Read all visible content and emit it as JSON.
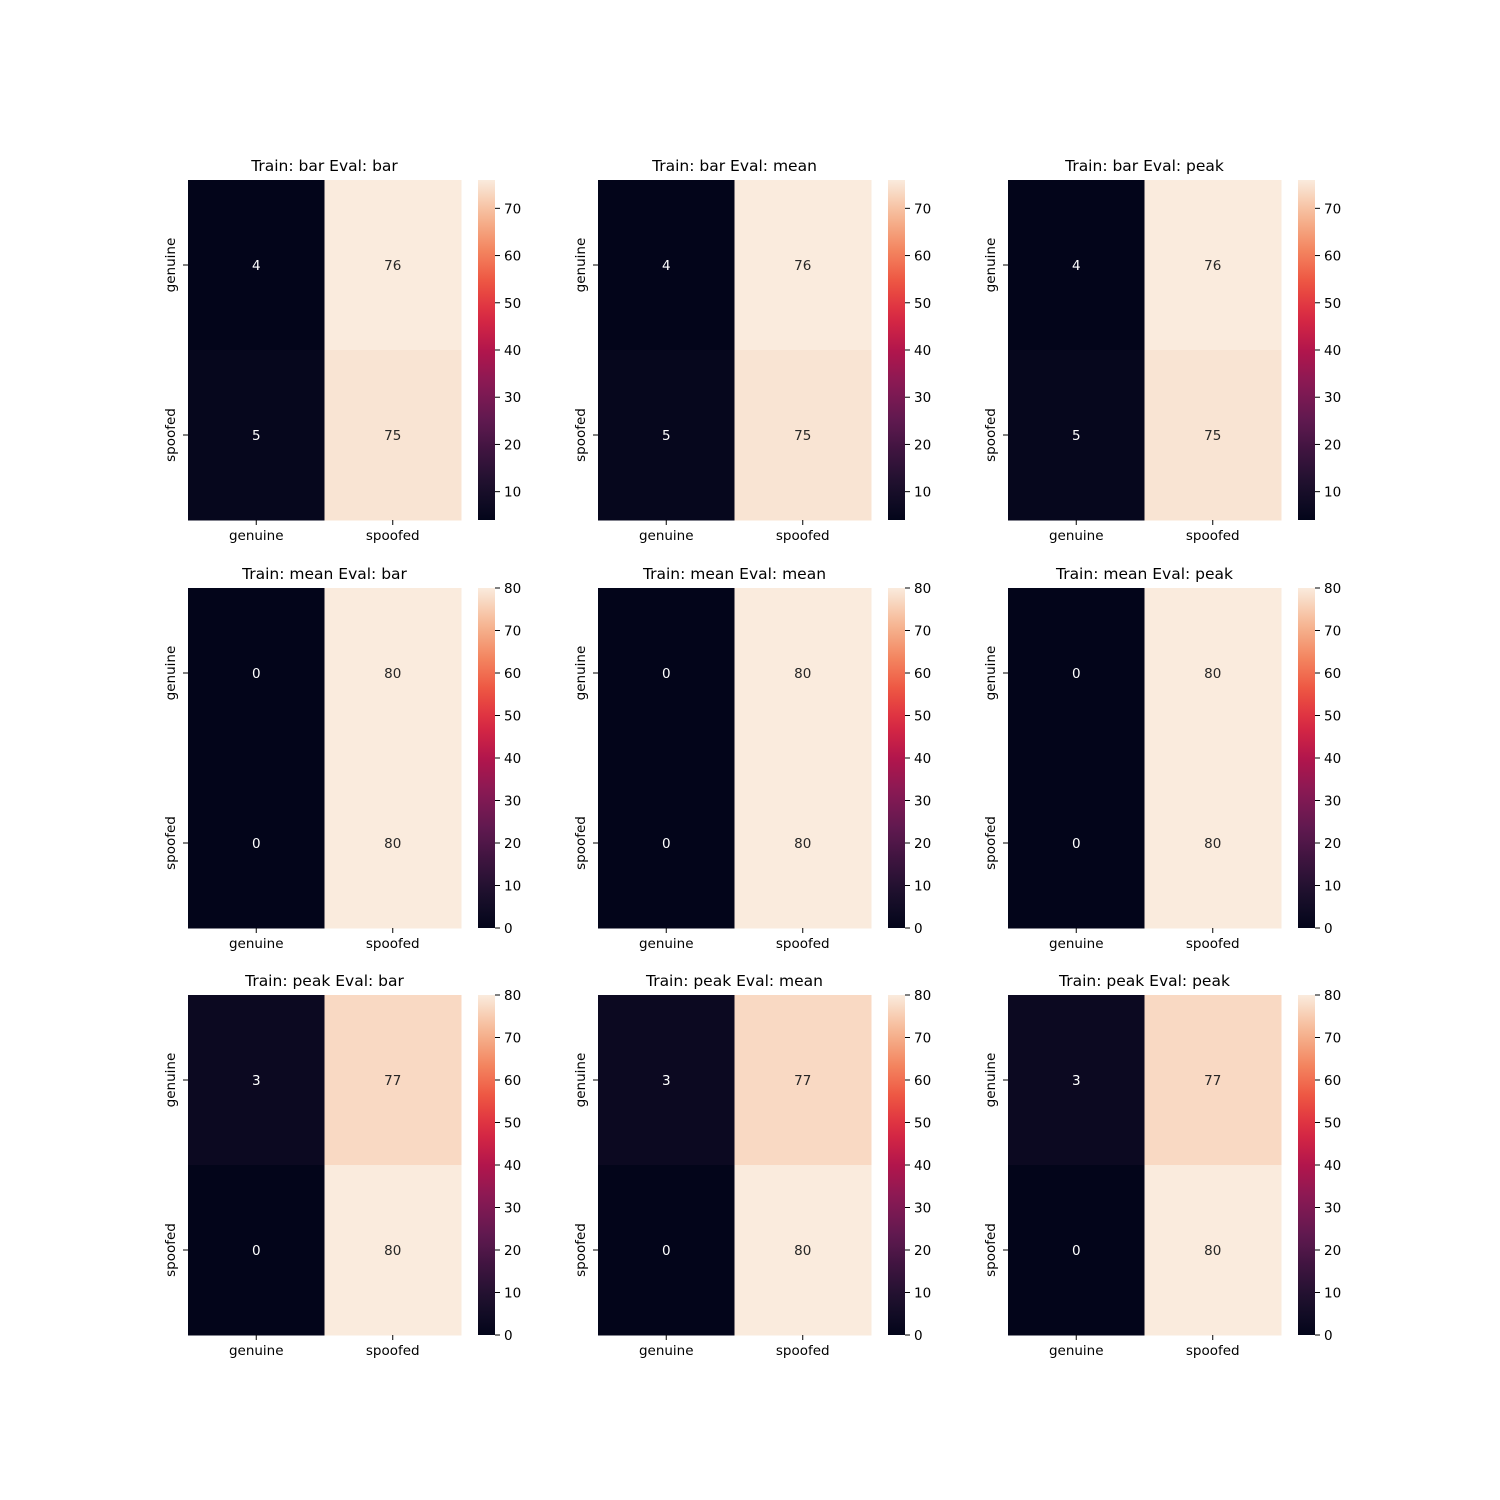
{
  "chart_data": [
    {
      "type": "heatmap",
      "title": "Train: bar Eval: bar",
      "x_categories": [
        "genuine",
        "spoofed"
      ],
      "y_categories": [
        "genuine",
        "spoofed"
      ],
      "values": [
        [
          4,
          76
        ],
        [
          5,
          75
        ]
      ],
      "colorbar": {
        "min": 4,
        "max": 76,
        "ticks": [
          10,
          20,
          30,
          40,
          50,
          60,
          70
        ]
      }
    },
    {
      "type": "heatmap",
      "title": "Train: bar Eval: mean",
      "x_categories": [
        "genuine",
        "spoofed"
      ],
      "y_categories": [
        "genuine",
        "spoofed"
      ],
      "values": [
        [
          4,
          76
        ],
        [
          5,
          75
        ]
      ],
      "colorbar": {
        "min": 4,
        "max": 76,
        "ticks": [
          10,
          20,
          30,
          40,
          50,
          60,
          70
        ]
      }
    },
    {
      "type": "heatmap",
      "title": "Train: bar Eval: peak",
      "x_categories": [
        "genuine",
        "spoofed"
      ],
      "y_categories": [
        "genuine",
        "spoofed"
      ],
      "values": [
        [
          4,
          76
        ],
        [
          5,
          75
        ]
      ],
      "colorbar": {
        "min": 4,
        "max": 76,
        "ticks": [
          10,
          20,
          30,
          40,
          50,
          60,
          70
        ]
      }
    },
    {
      "type": "heatmap",
      "title": "Train: mean Eval: bar",
      "x_categories": [
        "genuine",
        "spoofed"
      ],
      "y_categories": [
        "genuine",
        "spoofed"
      ],
      "values": [
        [
          0,
          80
        ],
        [
          0,
          80
        ]
      ],
      "colorbar": {
        "min": 0,
        "max": 80,
        "ticks": [
          0,
          10,
          20,
          30,
          40,
          50,
          60,
          70,
          80
        ]
      }
    },
    {
      "type": "heatmap",
      "title": "Train: mean Eval: mean",
      "x_categories": [
        "genuine",
        "spoofed"
      ],
      "y_categories": [
        "genuine",
        "spoofed"
      ],
      "values": [
        [
          0,
          80
        ],
        [
          0,
          80
        ]
      ],
      "colorbar": {
        "min": 0,
        "max": 80,
        "ticks": [
          0,
          10,
          20,
          30,
          40,
          50,
          60,
          70,
          80
        ]
      }
    },
    {
      "type": "heatmap",
      "title": "Train: mean Eval: peak",
      "x_categories": [
        "genuine",
        "spoofed"
      ],
      "y_categories": [
        "genuine",
        "spoofed"
      ],
      "values": [
        [
          0,
          80
        ],
        [
          0,
          80
        ]
      ],
      "colorbar": {
        "min": 0,
        "max": 80,
        "ticks": [
          0,
          10,
          20,
          30,
          40,
          50,
          60,
          70,
          80
        ]
      }
    },
    {
      "type": "heatmap",
      "title": "Train: peak Eval: bar",
      "x_categories": [
        "genuine",
        "spoofed"
      ],
      "y_categories": [
        "genuine",
        "spoofed"
      ],
      "values": [
        [
          3,
          77
        ],
        [
          0,
          80
        ]
      ],
      "colorbar": {
        "min": 0,
        "max": 80,
        "ticks": [
          0,
          10,
          20,
          30,
          40,
          50,
          60,
          70,
          80
        ]
      }
    },
    {
      "type": "heatmap",
      "title": "Train: peak Eval: mean",
      "x_categories": [
        "genuine",
        "spoofed"
      ],
      "y_categories": [
        "genuine",
        "spoofed"
      ],
      "values": [
        [
          3,
          77
        ],
        [
          0,
          80
        ]
      ],
      "colorbar": {
        "min": 0,
        "max": 80,
        "ticks": [
          0,
          10,
          20,
          30,
          40,
          50,
          60,
          70,
          80
        ]
      }
    },
    {
      "type": "heatmap",
      "title": "Train: peak Eval: peak",
      "x_categories": [
        "genuine",
        "spoofed"
      ],
      "y_categories": [
        "genuine",
        "spoofed"
      ],
      "values": [
        [
          3,
          77
        ],
        [
          0,
          80
        ]
      ],
      "colorbar": {
        "min": 0,
        "max": 80,
        "ticks": [
          0,
          10,
          20,
          30,
          40,
          50,
          60,
          70,
          80
        ]
      }
    }
  ]
}
